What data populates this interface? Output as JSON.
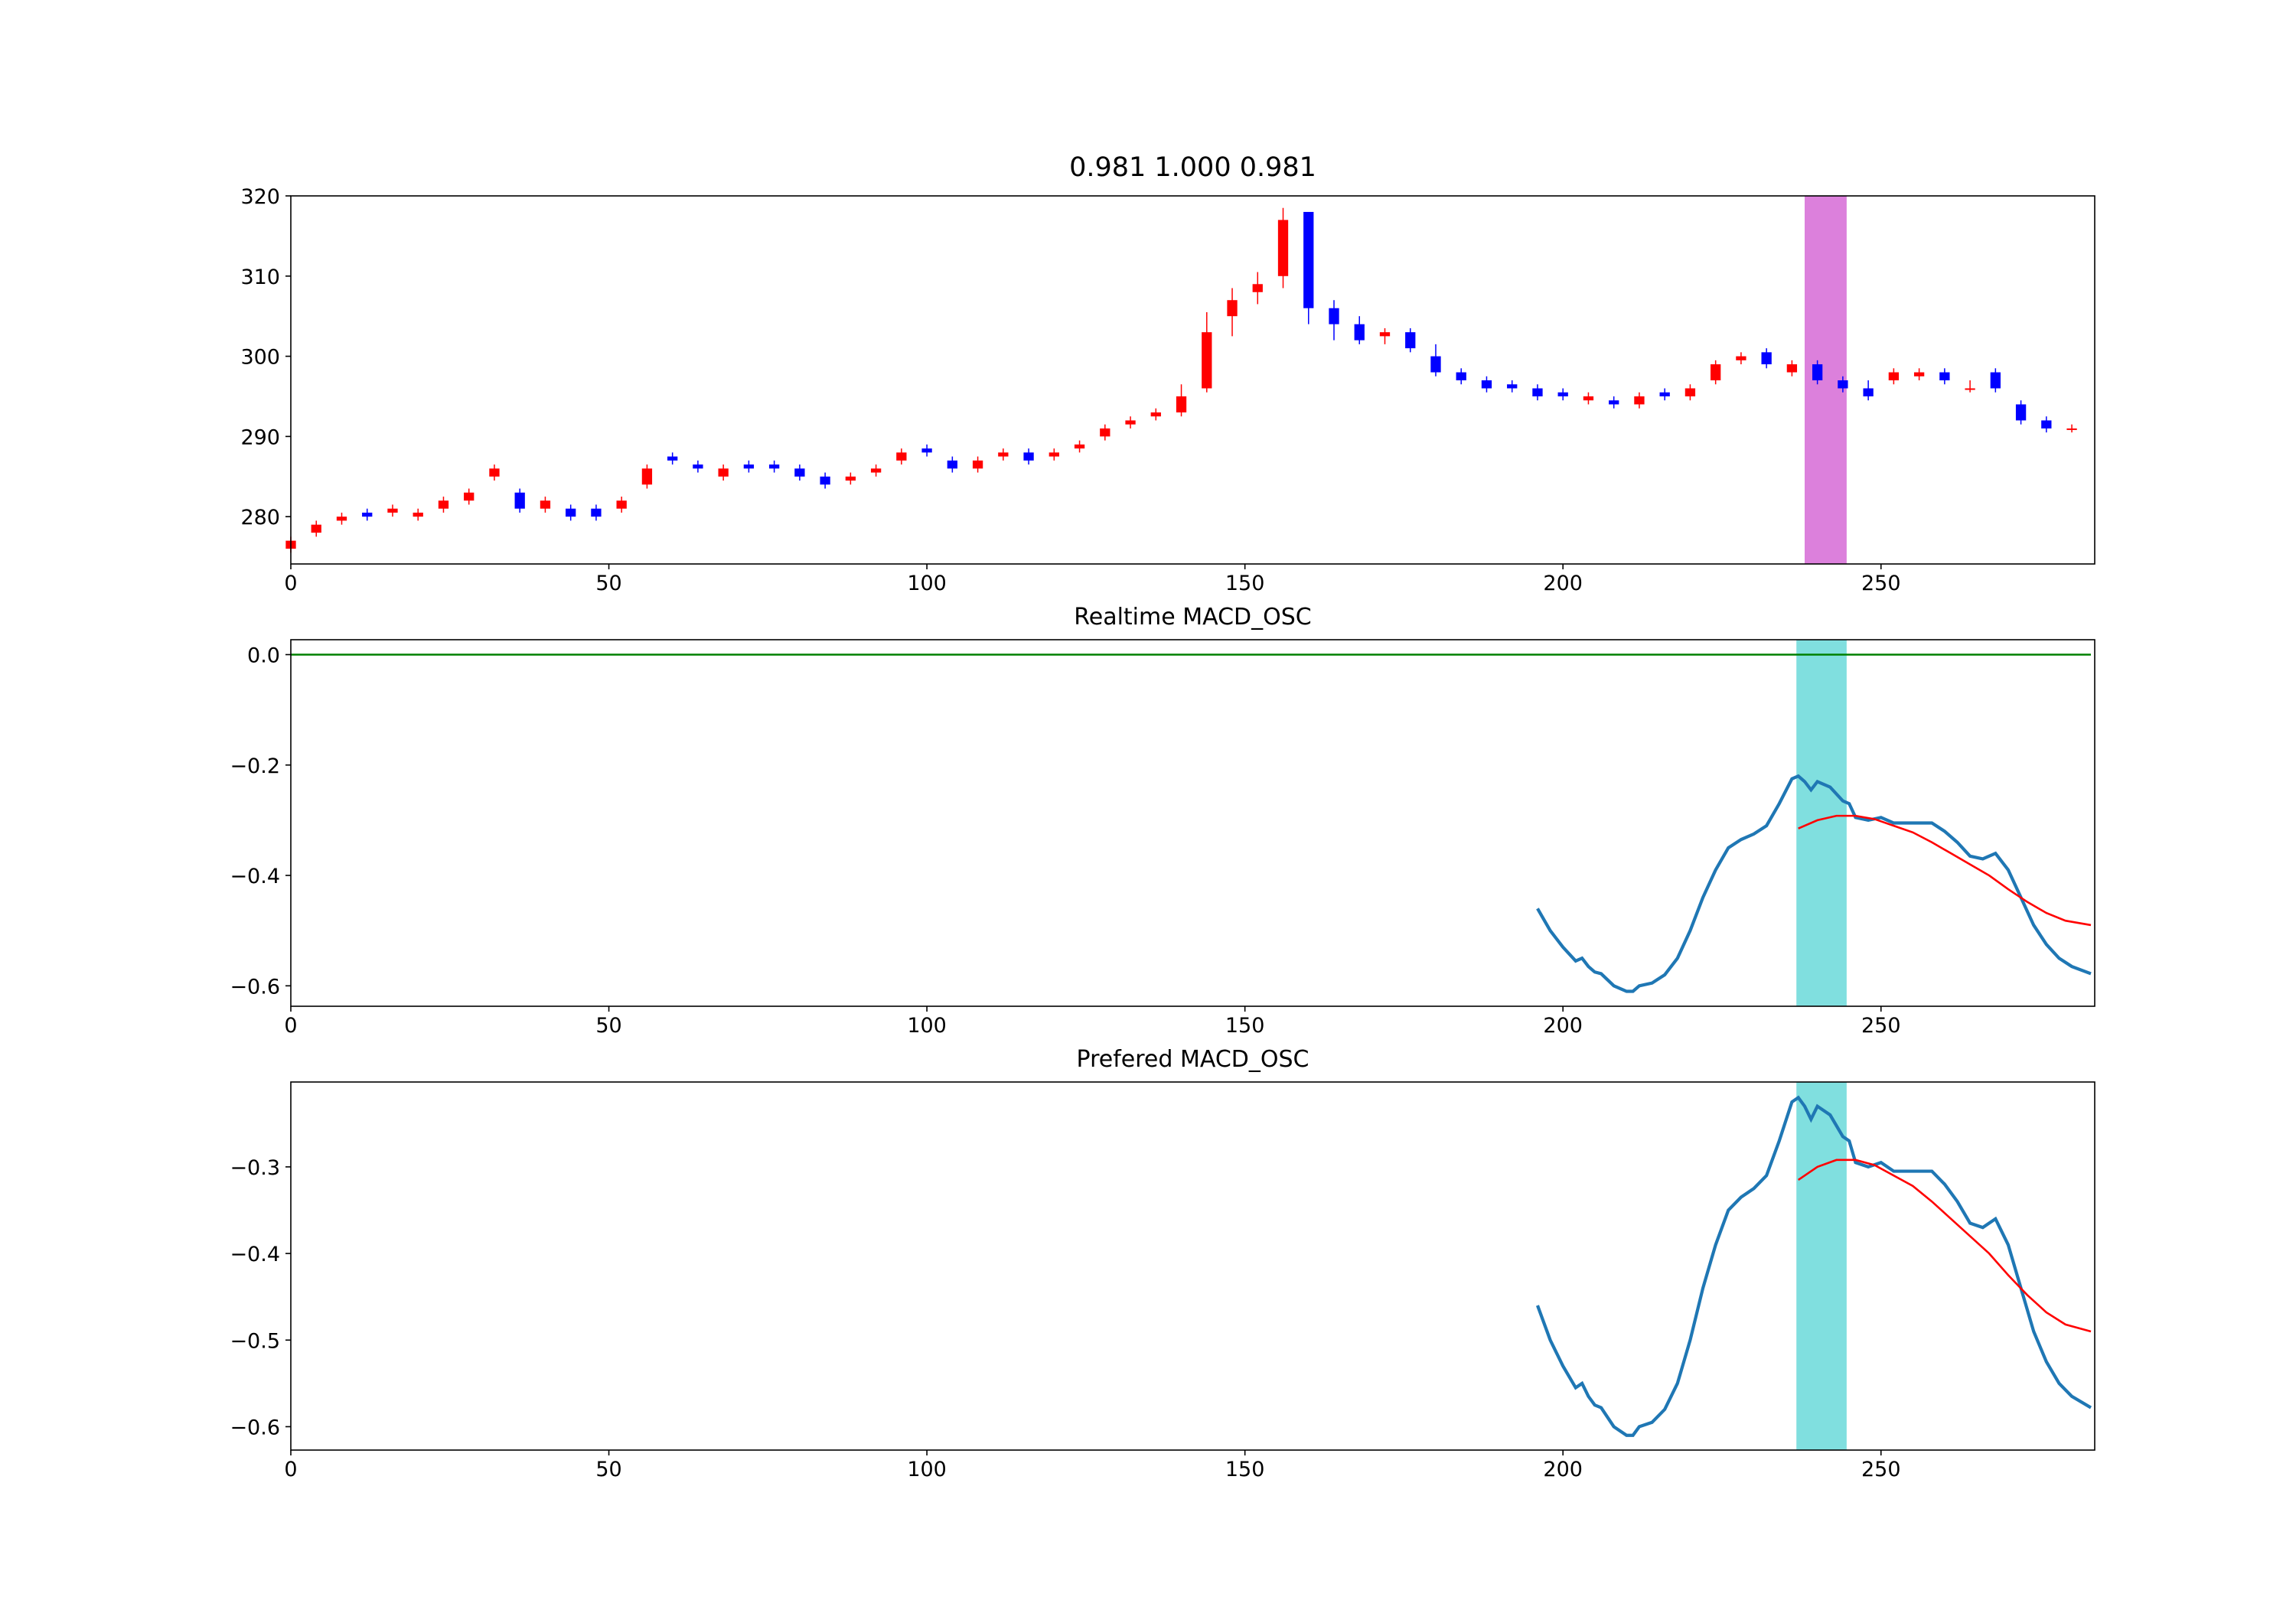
{
  "chart_data": [
    {
      "type": "candlestick",
      "title": "0.981 1.000 0.981",
      "x": [
        0,
        4,
        8,
        12,
        16,
        20,
        24,
        28,
        32,
        36,
        40,
        44,
        48,
        52,
        56,
        60,
        64,
        68,
        72,
        76,
        80,
        84,
        88,
        92,
        96,
        100,
        104,
        108,
        112,
        116,
        120,
        124,
        128,
        132,
        136,
        140,
        144,
        148,
        152,
        156,
        160,
        164,
        168,
        172,
        176,
        180,
        184,
        188,
        192,
        196,
        200,
        204,
        208,
        212,
        216,
        220,
        224,
        228,
        232,
        236,
        240,
        244,
        248,
        252,
        256,
        260,
        264,
        268,
        272,
        276,
        280
      ],
      "open": [
        276,
        278,
        279.5,
        280.5,
        280.5,
        280,
        281,
        282,
        285,
        283,
        281,
        281,
        281,
        281,
        284,
        287.5,
        286.5,
        285,
        286.5,
        286.5,
        286,
        285,
        284.5,
        285.5,
        287,
        288.5,
        287,
        286,
        287.5,
        288,
        287.5,
        288.5,
        290,
        291.5,
        292.5,
        293,
        296,
        305,
        308,
        310,
        318,
        306,
        304,
        302.5,
        303,
        300,
        298,
        297,
        296.5,
        296,
        295.5,
        294.5,
        294.5,
        294,
        295.5,
        295,
        297,
        299.5,
        300.5,
        298,
        299,
        297,
        296,
        297,
        297.5,
        298,
        296,
        298,
        294,
        292,
        291
      ],
      "high": [
        277.5,
        279.5,
        280.5,
        281,
        281.5,
        281,
        282.5,
        283.5,
        286.5,
        283.5,
        282.5,
        281.5,
        281.5,
        282.5,
        286.5,
        288,
        287,
        286.5,
        287,
        287,
        286.5,
        285.5,
        285.5,
        286.5,
        288.5,
        289,
        287.5,
        287.5,
        288.5,
        288.5,
        288.5,
        289.5,
        291.5,
        292.5,
        293.5,
        296.5,
        305.5,
        308.5,
        310.5,
        318.5,
        318,
        307,
        305,
        303.5,
        303.5,
        301.5,
        298.5,
        297.5,
        297,
        296.5,
        296,
        295.5,
        295,
        295.5,
        296,
        296.5,
        299.5,
        300.5,
        301,
        299.5,
        299.5,
        297.5,
        297,
        298.5,
        298.5,
        298.5,
        297,
        298.5,
        294.5,
        292.5,
        291.5
      ],
      "low": [
        275.5,
        277.5,
        279,
        279.5,
        280,
        279.5,
        280.5,
        281.5,
        284.5,
        280.5,
        280.5,
        279.5,
        279.5,
        280.5,
        283.5,
        286.5,
        285.5,
        284.5,
        285.5,
        285.5,
        284.5,
        283.5,
        284,
        285,
        286.5,
        287.5,
        285.5,
        285.5,
        287,
        286.5,
        287,
        288,
        289.5,
        291,
        292,
        292.5,
        295.5,
        302.5,
        306.5,
        308.5,
        304,
        302,
        301.5,
        301.5,
        300.5,
        297.5,
        296.5,
        295.5,
        295.5,
        294.5,
        294.5,
        294,
        293.5,
        293.5,
        294.5,
        294.5,
        296.5,
        299,
        298.5,
        297.5,
        296.5,
        295.5,
        294.5,
        296.5,
        297,
        296.5,
        295.5,
        295.5,
        291.5,
        290.5,
        290.5
      ],
      "close": [
        277,
        279,
        280,
        280,
        281,
        280.5,
        282,
        283,
        286,
        281,
        282,
        280,
        280,
        282,
        286,
        287,
        286,
        286,
        286,
        286,
        285,
        284,
        285,
        286,
        288,
        288,
        286,
        287,
        288,
        287,
        288,
        289,
        291,
        292,
        293,
        295,
        303,
        307,
        309,
        317,
        306,
        304,
        302,
        303,
        301,
        298,
        297,
        296,
        296,
        295,
        295,
        295,
        294,
        295,
        295,
        296,
        299,
        300,
        299,
        299,
        297,
        296,
        295,
        298,
        298,
        297,
        296,
        296,
        292,
        291,
        291
      ],
      "up_color": "red",
      "down_color": "blue",
      "spans": [
        {
          "x0": 238,
          "x1": 244.6,
          "color": "#dc80dc"
        }
      ],
      "xlim": [
        0,
        283.6
      ],
      "ylim": [
        274.1,
        320
      ],
      "xticks": [
        0,
        50,
        100,
        150,
        200,
        250
      ],
      "yticks": [
        280,
        290,
        300,
        310,
        320
      ]
    },
    {
      "type": "line",
      "title": "Realtime MACD_OSC",
      "series": [
        {
          "color": "green",
          "x": [
            0,
            283
          ],
          "values": [
            0,
            0
          ]
        },
        {
          "color": "#1f77b4",
          "x": [
            196,
            198,
            200,
            202,
            203,
            204,
            205,
            206,
            208,
            210,
            211,
            212,
            214,
            216,
            218,
            220,
            222,
            224,
            226,
            228,
            230,
            232,
            234,
            236,
            237,
            238,
            239,
            240,
            242,
            244,
            245,
            246,
            248,
            250,
            252,
            254,
            256,
            258,
            260,
            262,
            264,
            266,
            268,
            270,
            272,
            274,
            276,
            278,
            280,
            283
          ],
          "values": [
            -0.46,
            -0.5,
            -0.53,
            -0.555,
            -0.55,
            -0.565,
            -0.575,
            -0.578,
            -0.6,
            -0.61,
            -0.61,
            -0.6,
            -0.595,
            -0.58,
            -0.55,
            -0.5,
            -0.44,
            -0.39,
            -0.35,
            -0.335,
            -0.325,
            -0.31,
            -0.27,
            -0.225,
            -0.22,
            -0.23,
            -0.245,
            -0.23,
            -0.24,
            -0.265,
            -0.27,
            -0.295,
            -0.3,
            -0.295,
            -0.305,
            -0.305,
            -0.305,
            -0.305,
            -0.32,
            -0.34,
            -0.365,
            -0.37,
            -0.36,
            -0.39,
            -0.44,
            -0.49,
            -0.525,
            -0.55,
            -0.565,
            -0.578
          ]
        },
        {
          "color": "red",
          "x": [
            237,
            240,
            243,
            246,
            249,
            252,
            255,
            258,
            261,
            264,
            267,
            270,
            273,
            276,
            279,
            283
          ],
          "values": [
            -0.315,
            -0.3,
            -0.292,
            -0.292,
            -0.298,
            -0.31,
            -0.322,
            -0.34,
            -0.36,
            -0.38,
            -0.4,
            -0.425,
            -0.448,
            -0.468,
            -0.482,
            -0.49
          ]
        }
      ],
      "spans": [
        {
          "x0": 236.7,
          "x1": 244.6,
          "color": "#80dfdf"
        }
      ],
      "xlim": [
        0,
        283.6
      ],
      "ylim": [
        -0.637,
        0.027
      ],
      "xticks": [
        0,
        50,
        100,
        150,
        200,
        250
      ],
      "yticks": [
        {
          "value": 0,
          "label": "0.0"
        },
        {
          "value": -0.2,
          "label": "−0.2"
        },
        {
          "value": -0.4,
          "label": "−0.4"
        },
        {
          "value": -0.6,
          "label": "−0.6"
        }
      ]
    },
    {
      "type": "line",
      "title": "Prefered MACD_OSC",
      "series": [
        {
          "color": "#1f77b4",
          "x": [
            196,
            198,
            200,
            202,
            203,
            204,
            205,
            206,
            208,
            210,
            211,
            212,
            214,
            216,
            218,
            220,
            222,
            224,
            226,
            228,
            230,
            232,
            234,
            236,
            237,
            238,
            239,
            240,
            242,
            244,
            245,
            246,
            248,
            250,
            252,
            254,
            256,
            258,
            260,
            262,
            264,
            266,
            268,
            270,
            272,
            274,
            276,
            278,
            280,
            283
          ],
          "values": [
            -0.46,
            -0.5,
            -0.53,
            -0.555,
            -0.55,
            -0.565,
            -0.575,
            -0.578,
            -0.6,
            -0.61,
            -0.61,
            -0.6,
            -0.595,
            -0.58,
            -0.55,
            -0.5,
            -0.44,
            -0.39,
            -0.35,
            -0.335,
            -0.325,
            -0.31,
            -0.27,
            -0.225,
            -0.22,
            -0.23,
            -0.245,
            -0.23,
            -0.24,
            -0.265,
            -0.27,
            -0.295,
            -0.3,
            -0.295,
            -0.305,
            -0.305,
            -0.305,
            -0.305,
            -0.32,
            -0.34,
            -0.365,
            -0.37,
            -0.36,
            -0.39,
            -0.44,
            -0.49,
            -0.525,
            -0.55,
            -0.565,
            -0.578
          ]
        },
        {
          "color": "red",
          "x": [
            237,
            240,
            243,
            246,
            249,
            252,
            255,
            258,
            261,
            264,
            267,
            270,
            273,
            276,
            279,
            283
          ],
          "values": [
            -0.315,
            -0.3,
            -0.292,
            -0.292,
            -0.298,
            -0.31,
            -0.322,
            -0.34,
            -0.36,
            -0.38,
            -0.4,
            -0.425,
            -0.448,
            -0.468,
            -0.482,
            -0.49
          ]
        }
      ],
      "spans": [
        {
          "x0": 236.7,
          "x1": 244.6,
          "color": "#80dfdf"
        }
      ],
      "xlim": [
        0,
        283.6
      ],
      "ylim": [
        -0.627,
        -0.202
      ],
      "xticks": [
        0,
        50,
        100,
        150,
        200,
        250
      ],
      "yticks": [
        {
          "value": -0.3,
          "label": "−0.3"
        },
        {
          "value": -0.4,
          "label": "−0.4"
        },
        {
          "value": -0.5,
          "label": "−0.5"
        },
        {
          "value": -0.6,
          "label": "−0.6"
        }
      ]
    }
  ]
}
